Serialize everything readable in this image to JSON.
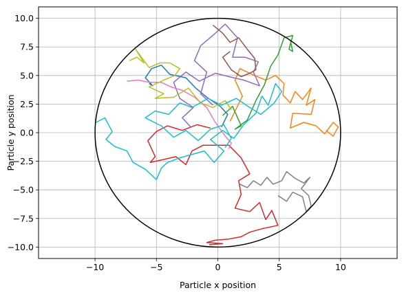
{
  "chart_data": {
    "type": "line",
    "title": "",
    "xlabel": "Particle x position",
    "ylabel": "Particle y position",
    "xlim": [
      -14.6,
      14.6
    ],
    "ylim": [
      -11.0,
      11.0
    ],
    "xticks": [
      -10,
      -5,
      0,
      5,
      10
    ],
    "yticks": [
      -10.0,
      -7.5,
      -5.0,
      -2.5,
      0.0,
      2.5,
      5.0,
      7.5,
      10.0
    ],
    "xtick_labels": [
      "−10",
      "−5",
      "0",
      "5",
      "10"
    ],
    "ytick_labels": [
      "−10.0",
      "−7.5",
      "−5.0",
      "−2.5",
      "0.0",
      "2.5",
      "5.0",
      "7.5",
      "10.0"
    ],
    "grid": true,
    "boundary": {
      "shape": "circle",
      "center": [
        0,
        0
      ],
      "radius": 10,
      "color": "#000000"
    },
    "series": [
      {
        "color": "#1f77b4",
        "points": [
          [
            0.3,
            0.5
          ],
          [
            0.8,
            1.6
          ],
          [
            0.2,
            2.3
          ],
          [
            -0.9,
            3.1
          ],
          [
            -1.8,
            3.9
          ],
          [
            -2.6,
            4.8
          ],
          [
            -3.9,
            5.1
          ],
          [
            -4.6,
            5.9
          ],
          [
            -5.4,
            5.6
          ],
          [
            -5.9,
            4.8
          ],
          [
            -5.3,
            4.1
          ],
          [
            -5.6,
            4.3
          ]
        ]
      },
      {
        "color": "#ff7f0e",
        "points": [
          [
            1.0,
            1.0
          ],
          [
            2.0,
            3.2
          ],
          [
            1.4,
            4.6
          ],
          [
            1.8,
            5.6
          ],
          [
            3.0,
            5.0
          ],
          [
            3.9,
            4.6
          ],
          [
            4.7,
            5.0
          ],
          [
            5.4,
            4.3
          ],
          [
            5.3,
            3.3
          ],
          [
            5.9,
            2.6
          ],
          [
            6.3,
            3.6
          ],
          [
            6.9,
            2.9
          ],
          [
            7.6,
            3.9
          ],
          [
            7.2,
            2.4
          ],
          [
            7.9,
            2.9
          ],
          [
            7.6,
            1.6
          ],
          [
            6.1,
            1.7
          ],
          [
            5.9,
            0.4
          ],
          [
            7.0,
            0.9
          ],
          [
            8.0,
            0.6
          ],
          [
            8.7,
            -0.1
          ],
          [
            9.4,
            0.9
          ],
          [
            9.8,
            0.5
          ],
          [
            9.4,
            -0.3
          ],
          [
            8.8,
            0.2
          ]
        ]
      },
      {
        "color": "#2ca02c",
        "points": [
          [
            0.4,
            1.5
          ],
          [
            1.2,
            2.3
          ],
          [
            1.9,
            0.6
          ],
          [
            1.4,
            0.3
          ],
          [
            2.4,
            1.1
          ],
          [
            3.1,
            2.8
          ],
          [
            3.8,
            4.2
          ],
          [
            4.3,
            5.8
          ],
          [
            4.9,
            6.8
          ],
          [
            5.4,
            8.3
          ],
          [
            6.1,
            8.5
          ],
          [
            5.8,
            7.3
          ],
          [
            6.1,
            7.1
          ],
          [
            5.9,
            8.1
          ]
        ]
      },
      {
        "color": "#d62728",
        "points": [
          [
            -0.6,
            0.4
          ],
          [
            -1.7,
            0.7
          ],
          [
            -2.9,
            0.2
          ],
          [
            -4.1,
            0.6
          ],
          [
            -5.0,
            0.1
          ],
          [
            -5.7,
            -0.7
          ],
          [
            -5.1,
            -2.1
          ],
          [
            -5.5,
            -2.6
          ],
          [
            -3.4,
            -2.1
          ],
          [
            -2.6,
            -2.8
          ],
          [
            -2.1,
            -1.6
          ],
          [
            -1.2,
            -1.1
          ],
          [
            0.9,
            -1.1
          ],
          [
            1.9,
            -2.2
          ],
          [
            2.6,
            -3.6
          ],
          [
            1.7,
            -4.2
          ],
          [
            1.9,
            -5.4
          ],
          [
            1.4,
            -6.6
          ],
          [
            2.6,
            -6.9
          ],
          [
            3.4,
            -6.1
          ],
          [
            3.9,
            -7.6
          ],
          [
            4.4,
            -6.8
          ],
          [
            4.9,
            -8.1
          ],
          [
            3.6,
            -8.4
          ],
          [
            2.6,
            -8.7
          ],
          [
            1.9,
            -9.1
          ],
          [
            0.9,
            -9.3
          ],
          [
            -0.2,
            -9.4
          ],
          [
            -0.9,
            -9.6
          ],
          [
            0.4,
            -9.7
          ],
          [
            -0.7,
            -9.8
          ]
        ]
      },
      {
        "color": "#9467bd",
        "points": [
          [
            -0.4,
            2.4
          ],
          [
            -1.4,
            3.4
          ],
          [
            -0.9,
            5.3
          ],
          [
            -1.9,
            6.3
          ],
          [
            -1.4,
            7.6
          ],
          [
            -0.3,
            8.6
          ],
          [
            0.6,
            9.5
          ],
          [
            1.6,
            8.3
          ],
          [
            1.2,
            6.6
          ],
          [
            2.2,
            6.6
          ],
          [
            3.3,
            6.2
          ],
          [
            2.9,
            5.3
          ],
          [
            3.4,
            4.1
          ],
          [
            2.1,
            4.6
          ],
          [
            0.9,
            4.9
          ],
          [
            -0.2,
            5.2
          ],
          [
            -1.5,
            4.5
          ],
          [
            -2.6,
            5.3
          ],
          [
            -3.6,
            4.4
          ],
          [
            -3.1,
            3.0
          ],
          [
            -2.0,
            2.2
          ],
          [
            -2.9,
            1.3
          ],
          [
            -2.2,
            0.5
          ]
        ]
      },
      {
        "color": "#8c564b",
        "points": [
          [
            -0.4,
            9.4
          ],
          [
            0.4,
            8.7
          ],
          [
            1.0,
            7.9
          ],
          [
            1.7,
            8.3
          ],
          [
            2.4,
            7.3
          ],
          [
            3.0,
            6.5
          ],
          [
            3.1,
            5.5
          ],
          [
            2.6,
            5.2
          ],
          [
            1.9,
            4.9
          ],
          [
            1.1,
            5.5
          ],
          [
            0.4,
            6.6
          ],
          [
            1.0,
            7.1
          ]
        ]
      },
      {
        "color": "#e377c2",
        "points": [
          [
            -7.4,
            4.5
          ],
          [
            -6.5,
            4.6
          ],
          [
            -5.6,
            4.4
          ],
          [
            -4.6,
            4.4
          ],
          [
            -3.8,
            4.0
          ],
          [
            -2.9,
            3.7
          ],
          [
            -1.9,
            3.1
          ],
          [
            -0.9,
            2.2
          ],
          [
            -0.2,
            0.9
          ],
          [
            0.6,
            -0.3
          ],
          [
            1.1,
            -0.9
          ],
          [
            0.9,
            -1.4
          ]
        ]
      },
      {
        "color": "#7f7f7f",
        "points": [
          [
            1.8,
            -4.5
          ],
          [
            2.4,
            -4.8
          ],
          [
            2.9,
            -4.2
          ],
          [
            3.5,
            -4.6
          ],
          [
            4.0,
            -3.9
          ],
          [
            4.5,
            -4.5
          ],
          [
            5.2,
            -4.2
          ],
          [
            5.6,
            -3.4
          ],
          [
            6.3,
            -4.0
          ],
          [
            7.0,
            -4.4
          ],
          [
            7.5,
            -3.9
          ],
          [
            6.8,
            -4.9
          ],
          [
            7.4,
            -5.5
          ],
          [
            7.6,
            -6.4
          ],
          [
            7.2,
            -6.9
          ],
          [
            6.9,
            -5.6
          ],
          [
            6.1,
            -5.2
          ],
          [
            5.6,
            -6.0
          ],
          [
            4.9,
            -5.5
          ]
        ]
      },
      {
        "color": "#bcbd22",
        "points": [
          [
            -7.2,
            6.3
          ],
          [
            -6.6,
            6.6
          ],
          [
            -6.0,
            6.1
          ],
          [
            -6.7,
            7.3
          ],
          [
            -5.6,
            5.7
          ],
          [
            -4.7,
            6.1
          ],
          [
            -3.9,
            6.1
          ],
          [
            -3.1,
            5.6
          ],
          [
            -3.5,
            5.0
          ],
          [
            -4.4,
            4.6
          ],
          [
            -5.6,
            4.0
          ],
          [
            -4.4,
            3.4
          ],
          [
            -5.1,
            3.0
          ],
          [
            -3.6,
            3.1
          ],
          [
            -2.4,
            3.9
          ],
          [
            -1.4,
            2.6
          ],
          [
            -0.4,
            2.2
          ],
          [
            0.6,
            2.8
          ],
          [
            1.1,
            2.0
          ]
        ]
      },
      {
        "color": "#17becf",
        "points": [
          [
            -9.9,
            0.9
          ],
          [
            -9.2,
            1.3
          ],
          [
            -8.6,
            0.1
          ],
          [
            -9.1,
            -0.6
          ],
          [
            -8.4,
            -1.2
          ],
          [
            -7.4,
            -1.6
          ],
          [
            -6.9,
            -2.6
          ],
          [
            -5.9,
            -3.2
          ],
          [
            -5.0,
            -4.1
          ],
          [
            -4.6,
            -3.1
          ],
          [
            -4.1,
            -2.6
          ],
          [
            -3.1,
            -2.2
          ],
          [
            -2.1,
            -1.9
          ],
          [
            -1.1,
            -1.6
          ],
          [
            -0.3,
            -2.6
          ],
          [
            0.5,
            -1.6
          ],
          [
            -0.6,
            -0.6
          ],
          [
            0.4,
            0.2
          ],
          [
            1.3,
            -0.5
          ],
          [
            2.1,
            0.7
          ],
          [
            3.1,
            1.7
          ],
          [
            3.6,
            3.2
          ],
          [
            4.1,
            2.4
          ],
          [
            4.7,
            4.3
          ],
          [
            5.2,
            3.6
          ],
          [
            4.6,
            2.6
          ],
          [
            3.5,
            1.6
          ],
          [
            2.6,
            2.2
          ],
          [
            1.5,
            3.0
          ],
          [
            0.3,
            2.4
          ],
          [
            -0.8,
            3.0
          ],
          [
            -2.1,
            2.2
          ],
          [
            -3.1,
            2.6
          ],
          [
            -4.0,
            1.6
          ],
          [
            -5.1,
            1.9
          ],
          [
            -5.9,
            1.3
          ],
          [
            -4.6,
            0.6
          ],
          [
            -3.6,
            -0.4
          ],
          [
            -2.6,
            0.2
          ],
          [
            -1.6,
            -0.7
          ],
          [
            -0.6,
            0.3
          ],
          [
            0.5,
            0.7
          ],
          [
            1.1,
            -0.5
          ],
          [
            0.6,
            -1.3
          ]
        ]
      }
    ]
  }
}
